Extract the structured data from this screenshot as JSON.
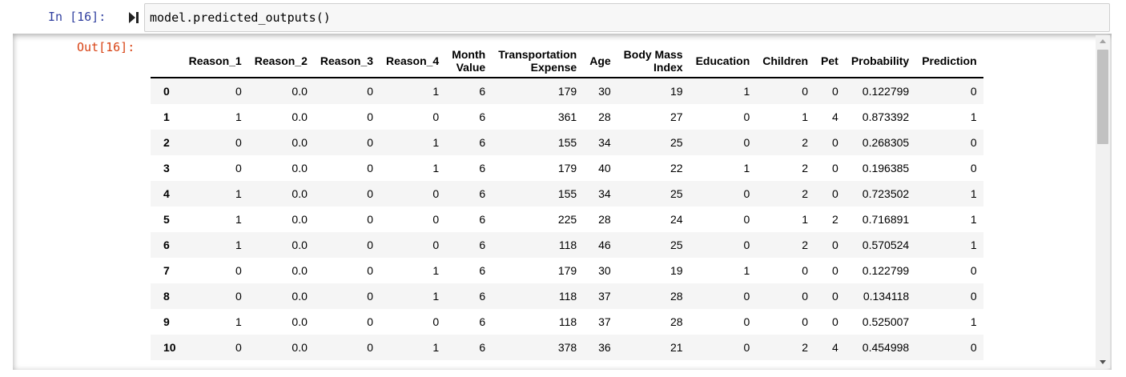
{
  "input_cell": {
    "prompt": "In [16]:",
    "code": "model.predicted_outputs()"
  },
  "output_cell": {
    "prompt": "Out[16]:"
  },
  "table": {
    "columns": [
      "",
      "Reason_1",
      "Reason_2",
      "Reason_3",
      "Reason_4",
      [
        "Month",
        "Value"
      ],
      [
        "Transportation",
        "Expense"
      ],
      "Age",
      [
        "Body Mass",
        "Index"
      ],
      "Education",
      "Children",
      "Pet",
      "Probability",
      "Prediction"
    ],
    "rows": [
      [
        "0",
        "0",
        "0.0",
        "0",
        "1",
        "6",
        "179",
        "30",
        "19",
        "1",
        "0",
        "0",
        "0.122799",
        "0"
      ],
      [
        "1",
        "1",
        "0.0",
        "0",
        "0",
        "6",
        "361",
        "28",
        "27",
        "0",
        "1",
        "4",
        "0.873392",
        "1"
      ],
      [
        "2",
        "0",
        "0.0",
        "0",
        "1",
        "6",
        "155",
        "34",
        "25",
        "0",
        "2",
        "0",
        "0.268305",
        "0"
      ],
      [
        "3",
        "0",
        "0.0",
        "0",
        "1",
        "6",
        "179",
        "40",
        "22",
        "1",
        "2",
        "0",
        "0.196385",
        "0"
      ],
      [
        "4",
        "1",
        "0.0",
        "0",
        "0",
        "6",
        "155",
        "34",
        "25",
        "0",
        "2",
        "0",
        "0.723502",
        "1"
      ],
      [
        "5",
        "1",
        "0.0",
        "0",
        "0",
        "6",
        "225",
        "28",
        "24",
        "0",
        "1",
        "2",
        "0.716891",
        "1"
      ],
      [
        "6",
        "1",
        "0.0",
        "0",
        "0",
        "6",
        "118",
        "46",
        "25",
        "0",
        "2",
        "0",
        "0.570524",
        "1"
      ],
      [
        "7",
        "0",
        "0.0",
        "0",
        "1",
        "6",
        "179",
        "30",
        "19",
        "1",
        "0",
        "0",
        "0.122799",
        "0"
      ],
      [
        "8",
        "0",
        "0.0",
        "0",
        "1",
        "6",
        "118",
        "37",
        "28",
        "0",
        "0",
        "0",
        "0.134118",
        "0"
      ],
      [
        "9",
        "1",
        "0.0",
        "0",
        "0",
        "6",
        "118",
        "37",
        "28",
        "0",
        "0",
        "0",
        "0.525007",
        "1"
      ],
      [
        "10",
        "0",
        "0.0",
        "0",
        "1",
        "6",
        "378",
        "36",
        "21",
        "0",
        "2",
        "4",
        "0.454998",
        "0"
      ]
    ]
  },
  "icons": {
    "run": "run-cell-icon",
    "scroll_up": "arrow-up-icon",
    "scroll_down": "arrow-down-icon"
  },
  "colors": {
    "in_prompt": "#303f9f",
    "out_prompt": "#d84315",
    "row_stripe": "#f5f5f5"
  }
}
